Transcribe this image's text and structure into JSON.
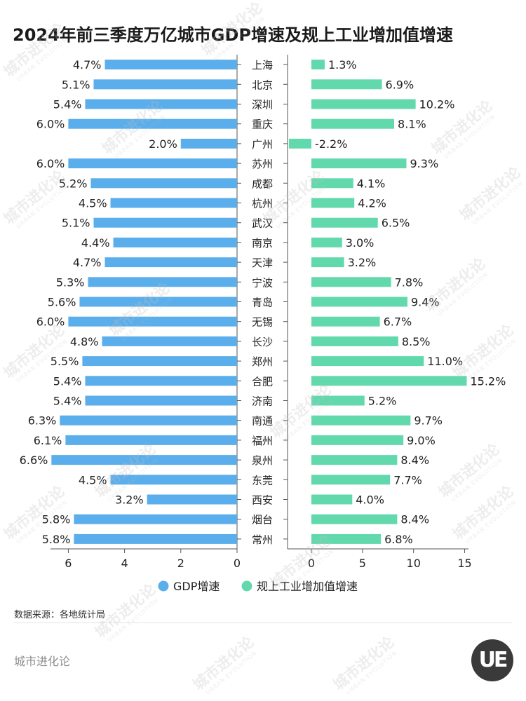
{
  "title": "2024年前三季度万亿城市GDP增速及规上工业增加值增速",
  "source": "数据来源：各地统计局",
  "brand": "城市进化论",
  "logo_text": "UE",
  "watermark": {
    "cn": "城市进化论",
    "en": "URBAN EVOLUTION"
  },
  "chart_data": {
    "type": "bar",
    "orientation": "horizontal",
    "categories": [
      "上海",
      "北京",
      "深圳",
      "重庆",
      "广州",
      "苏州",
      "成都",
      "杭州",
      "武汉",
      "南京",
      "天津",
      "宁波",
      "青岛",
      "无锡",
      "长沙",
      "郑州",
      "合肥",
      "济南",
      "南通",
      "福州",
      "泉州",
      "东莞",
      "西安",
      "烟台",
      "常州"
    ],
    "series": [
      {
        "name": "GDP增速",
        "color": "#5aaeec",
        "values": [
          4.7,
          5.1,
          5.4,
          6.0,
          2.0,
          6.0,
          5.2,
          4.5,
          5.1,
          4.4,
          4.7,
          5.3,
          5.6,
          6.0,
          4.8,
          5.5,
          5.4,
          5.4,
          6.3,
          6.1,
          6.6,
          4.5,
          3.2,
          5.8,
          5.8
        ],
        "labels": [
          "4.7%",
          "5.1%",
          "5.4%",
          "6.0%",
          "2.0%",
          "6.0%",
          "5.2%",
          "4.5%",
          "5.1%",
          "4.4%",
          "4.7%",
          "5.3%",
          "5.6%",
          "6.0%",
          "4.8%",
          "5.5%",
          "5.4%",
          "5.4%",
          "6.3%",
          "6.1%",
          "6.6%",
          "4.5%",
          "3.2%",
          "5.8%",
          "5.8%"
        ],
        "xlim": [
          6.6,
          0
        ],
        "ticks": [
          "6",
          "4",
          "2",
          "0"
        ]
      },
      {
        "name": "规上工业增加值增速",
        "color": "#62d9ad",
        "values": [
          1.3,
          6.9,
          10.2,
          8.1,
          -2.2,
          9.3,
          4.1,
          4.2,
          6.5,
          3.0,
          3.2,
          7.8,
          9.4,
          6.7,
          8.5,
          11.0,
          15.2,
          5.2,
          9.7,
          9.0,
          8.4,
          7.7,
          4.0,
          8.4,
          6.8
        ],
        "labels": [
          "1.3%",
          "6.9%",
          "10.2%",
          "8.1%",
          "-2.2%",
          "9.3%",
          "4.1%",
          "4.2%",
          "6.5%",
          "3.0%",
          "3.2%",
          "7.8%",
          "9.4%",
          "6.7%",
          "8.5%",
          "11.0%",
          "15.2%",
          "5.2%",
          "9.7%",
          "9.0%",
          "8.4%",
          "7.7%",
          "4.0%",
          "8.4%",
          "6.8%"
        ],
        "xlim": [
          -2.2,
          15.2
        ],
        "ticks": [
          "0",
          "5",
          "10",
          "15"
        ]
      }
    ],
    "legend": "bottom",
    "grid": false
  }
}
